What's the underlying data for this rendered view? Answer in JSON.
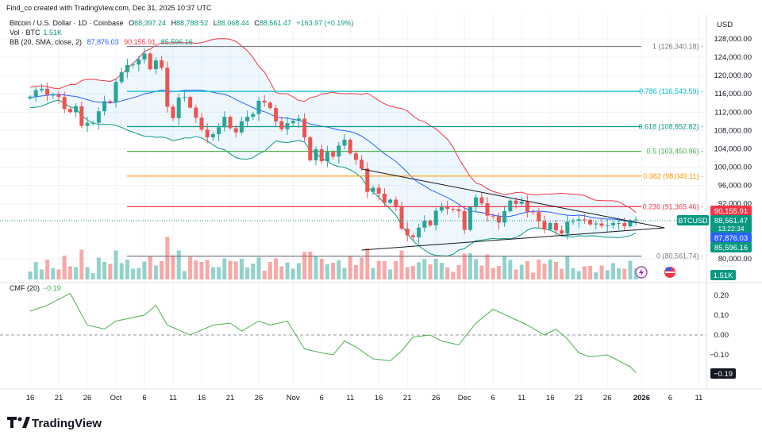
{
  "header": {
    "credit": "Find_co created with TradingView.com, Dec 31, 2025 10:37 UTC"
  },
  "legend": {
    "symbol": "Bitcoin / U.S. Dollar · 1D · Coinbase",
    "o_label": "O",
    "o": "88,397.24",
    "h_label": "H",
    "h": "88,788.52",
    "l_label": "L",
    "l": "88,068.44",
    "c_label": "C",
    "c": "88,561.47",
    "change": "+163.97 (+0.19%)",
    "vol_label": "Vol · BTC",
    "vol": "1.51K",
    "bb_label": "BB (20, SMA, close, 2)",
    "bb_basis": "87,876.03",
    "bb_upper": "90,155.91",
    "bb_lower": "85,596.16",
    "cmf_label": "CMF (20)",
    "cmf": "−0.19"
  },
  "axis": {
    "currency": "USD",
    "price_ticks": [
      "128,000.00",
      "124,000.00",
      "120,000.00",
      "116,000.00",
      "112,000.00",
      "108,000.00",
      "104,000.00",
      "100,000.00",
      "96,000.00",
      "92,000.00",
      "80,000.00"
    ],
    "cmf_ticks": [
      "0.20",
      "0.10",
      "0.00",
      "−0.10"
    ],
    "time_ticks": [
      "16",
      "21",
      "26",
      "Oct",
      "6",
      "11",
      "16",
      "21",
      "26",
      "Nov",
      "6",
      "11",
      "16",
      "21",
      "26",
      "Dec",
      "6",
      "11",
      "16",
      "21",
      "26",
      "2026",
      "6",
      "11"
    ]
  },
  "tags": {
    "symbol": "BTCUSD",
    "upper": "90,155.91",
    "last": "88,561.47",
    "countdown": "13:22:34",
    "basis": "87,876.03",
    "lower": "85,596.16",
    "volume": "1.51K",
    "cmf": "−0.19"
  },
  "colors": {
    "up": "#26a69a",
    "down": "#ef5350",
    "bb_basis": "#2962ff",
    "bb_upper": "#f23645",
    "bb_lower": "#089981",
    "cmf": "#4caf50"
  },
  "branding": {
    "logo": "TradingView"
  },
  "chart_data": {
    "type": "candlestick",
    "title": "Bitcoin / U.S. Dollar · 1D · Coinbase",
    "start_date": "2025-09-16",
    "end_date": "2025-12-31",
    "ylim": [
      76000,
      130000
    ],
    "closes": [
      115.4,
      116.8,
      117.1,
      115.7,
      115.8,
      115.3,
      112.7,
      112.0,
      113.3,
      109.0,
      109.7,
      109.7,
      112.2,
      114.4,
      114.1,
      118.6,
      120.7,
      122.3,
      122.4,
      123.5,
      124.8,
      121.4,
      123.3,
      121.7,
      113.2,
      110.7,
      115.2,
      115.3,
      113.0,
      110.8,
      108.2,
      106.5,
      107.2,
      108.7,
      111.0,
      108.5,
      107.6,
      110.0,
      111.0,
      111.6,
      114.5,
      114.1,
      112.9,
      110.0,
      108.3,
      109.6,
      110.1,
      110.6,
      106.5,
      101.5,
      103.9,
      101.3,
      103.3,
      102.3,
      104.7,
      106.0,
      103.0,
      101.6,
      99.7,
      94.6,
      95.5,
      94.2,
      92.2,
      92.9,
      91.5,
      86.6,
      85.1,
      84.7,
      86.8,
      88.3,
      87.3,
      90.5,
      91.3,
      90.9,
      90.8,
      90.4,
      86.3,
      91.3,
      93.4,
      92.1,
      89.4,
      89.3,
      87.9,
      90.4,
      92.7,
      92.0,
      92.5,
      90.3,
      90.2,
      88.2,
      86.4,
      87.8,
      86.2,
      85.5,
      88.1,
      88.3,
      88.6,
      88.5,
      87.5,
      87.7,
      87.2,
      87.3,
      87.8,
      87.8,
      87.1,
      88.4,
      88.56
    ],
    "closes_unit": "thousand USD",
    "fib_levels": [
      {
        "label": "1 (126,340.18)",
        "price": 126340.18,
        "color": "#787b86"
      },
      {
        "label": "0.786 (116,543.59)",
        "price": 116543.59,
        "color": "#00bcd4"
      },
      {
        "label": "0.618 (108,852.82)",
        "price": 108852.82,
        "color": "#089981"
      },
      {
        "label": "0.5 (103,450.96)",
        "price": 103450.96,
        "color": "#4caf50"
      },
      {
        "label": "0.382 (98,049.11)",
        "price": 98049.11,
        "color": "#ff9800"
      },
      {
        "label": "0.236 (91,365.46)",
        "price": 91365.46,
        "color": "#f23645"
      },
      {
        "label": "0 (80,561.74)",
        "price": 80561.74,
        "color": "#787b86"
      }
    ],
    "triangle": {
      "upper": [
        [
          58,
          99600
        ],
        [
          111,
          86750
        ]
      ],
      "lower": [
        [
          58,
          81900
        ],
        [
          111,
          86750
        ]
      ]
    },
    "cmf_points": [
      [
        0,
        0.12
      ],
      [
        3,
        0.15
      ],
      [
        7,
        0.21
      ],
      [
        10,
        0.05
      ],
      [
        13,
        0.03
      ],
      [
        15,
        0.07
      ],
      [
        20,
        0.1
      ],
      [
        22,
        0.15
      ],
      [
        24,
        0.05
      ],
      [
        28,
        0.0
      ],
      [
        32,
        0.05
      ],
      [
        35,
        0.06
      ],
      [
        37,
        0.02
      ],
      [
        40,
        0.07
      ],
      [
        42,
        0.05
      ],
      [
        45,
        0.07
      ],
      [
        48,
        -0.07
      ],
      [
        51,
        -0.09
      ],
      [
        53,
        -0.1
      ],
      [
        55,
        -0.03
      ],
      [
        57,
        -0.06
      ],
      [
        60,
        -0.12
      ],
      [
        63,
        -0.13
      ],
      [
        65,
        -0.08
      ],
      [
        67,
        -0.01
      ],
      [
        70,
        0.0
      ],
      [
        72,
        -0.03
      ],
      [
        75,
        -0.05
      ],
      [
        78,
        0.06
      ],
      [
        81,
        0.13
      ],
      [
        84,
        0.09
      ],
      [
        87,
        0.05
      ],
      [
        90,
        0.0
      ],
      [
        92,
        0.03
      ],
      [
        94,
        -0.02
      ],
      [
        96,
        -0.09
      ],
      [
        98,
        -0.11
      ],
      [
        101,
        -0.1
      ],
      [
        103,
        -0.13
      ],
      [
        105,
        -0.16
      ],
      [
        106,
        -0.19
      ]
    ]
  }
}
